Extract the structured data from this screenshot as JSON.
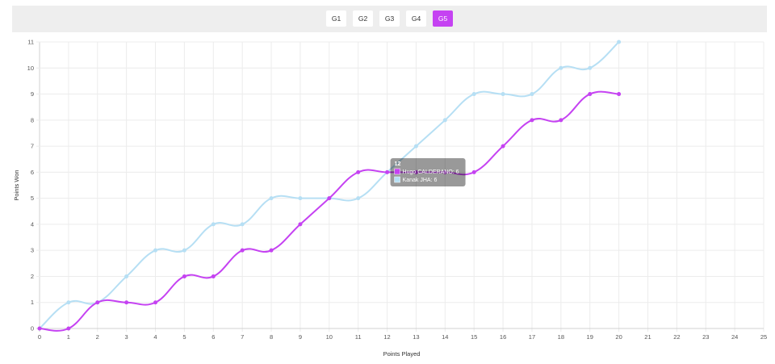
{
  "game_tabs": {
    "items": [
      {
        "label": "G1",
        "active": false
      },
      {
        "label": "G2",
        "active": false
      },
      {
        "label": "G3",
        "active": false
      },
      {
        "label": "G4",
        "active": false
      },
      {
        "label": "G5",
        "active": true
      }
    ],
    "active_color": "#c542f2"
  },
  "chart_data": {
    "type": "line",
    "xlabel": "Points Played",
    "ylabel": "Points Won",
    "xlim": [
      0,
      25
    ],
    "ylim": [
      0,
      11
    ],
    "x_ticks": [
      0,
      1,
      2,
      3,
      4,
      5,
      6,
      7,
      8,
      9,
      10,
      11,
      12,
      13,
      14,
      15,
      16,
      17,
      18,
      19,
      20,
      21,
      22,
      23,
      24,
      25
    ],
    "y_ticks": [
      0,
      1,
      2,
      3,
      4,
      5,
      6,
      7,
      8,
      9,
      10,
      11
    ],
    "grid": true,
    "x": [
      0,
      1,
      2,
      3,
      4,
      5,
      6,
      7,
      8,
      9,
      10,
      11,
      12,
      13,
      14,
      15,
      16,
      17,
      18,
      19,
      20
    ],
    "series": [
      {
        "name": "Kanak JHA",
        "color": "#b6dff4",
        "values": [
          0,
          1,
          1,
          2,
          3,
          3,
          4,
          4,
          5,
          5,
          5,
          5,
          6,
          7,
          8,
          9,
          9,
          9,
          10,
          10,
          11
        ]
      },
      {
        "name": "Hugo CALDERANO",
        "color": "#c542f2",
        "values": [
          0,
          0,
          1,
          1,
          1,
          2,
          2,
          3,
          3,
          4,
          5,
          6,
          6,
          6,
          6,
          6,
          7,
          8,
          8,
          9,
          9
        ]
      }
    ],
    "tooltip": {
      "title": "12",
      "x": 12,
      "entries": [
        {
          "label": "Hugo CALDERANO: 6",
          "color": "#c542f2"
        },
        {
          "label": "Kanak JHA: 6",
          "color": "#b6dff4"
        }
      ]
    }
  }
}
